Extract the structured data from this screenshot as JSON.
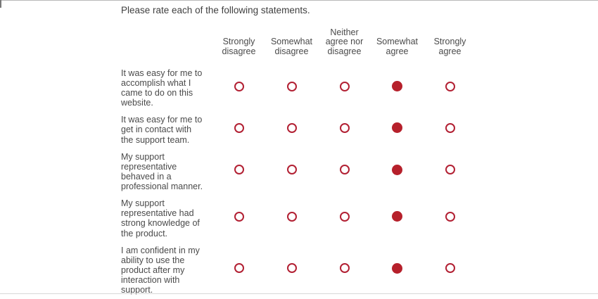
{
  "page": {
    "title": "Please rate each of the following statements."
  },
  "matrix": {
    "options": [
      "Strongly disagree",
      "Somewhat disagree",
      "Neither agree nor disagree",
      "Somewhat agree",
      "Strongly agree"
    ],
    "rows": [
      {
        "statement": "It was easy for me to accomplish what I came to do on this website.",
        "selected": "Somewhat agree",
        "selected_index": 3
      },
      {
        "statement": "It was easy for me to get in contact with the support team.",
        "selected": "Somewhat agree",
        "selected_index": 3
      },
      {
        "statement": "My support representative behaved in a professional manner.",
        "selected": "Somewhat agree",
        "selected_index": 3
      },
      {
        "statement": "My support representative had strong knowledge of the product.",
        "selected": "Somewhat agree",
        "selected_index": 3
      },
      {
        "statement": "I am confident in my ability to use the product after my interaction with support.",
        "selected": "Somewhat agree",
        "selected_index": 3
      }
    ]
  },
  "colors": {
    "radio_ring": "#b22033",
    "radio_fill": "#b6202b",
    "text": "#4a4a4a"
  }
}
